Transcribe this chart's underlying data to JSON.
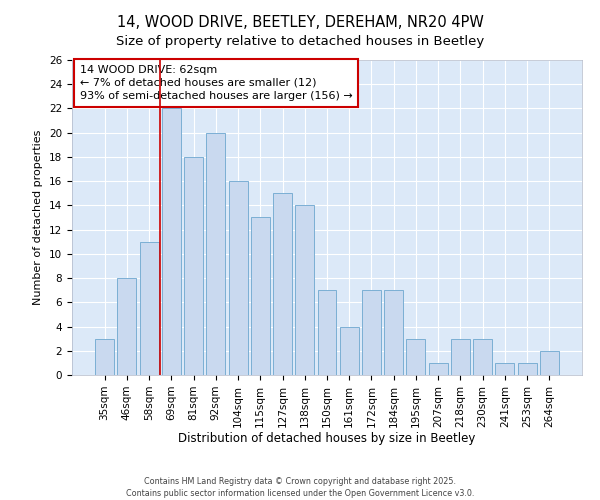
{
  "title": "14, WOOD DRIVE, BEETLEY, DEREHAM, NR20 4PW",
  "subtitle": "Size of property relative to detached houses in Beetley",
  "xlabel": "Distribution of detached houses by size in Beetley",
  "ylabel": "Number of detached properties",
  "categories": [
    "35sqm",
    "46sqm",
    "58sqm",
    "69sqm",
    "81sqm",
    "92sqm",
    "104sqm",
    "115sqm",
    "127sqm",
    "138sqm",
    "150sqm",
    "161sqm",
    "172sqm",
    "184sqm",
    "195sqm",
    "207sqm",
    "218sqm",
    "230sqm",
    "241sqm",
    "253sqm",
    "264sqm"
  ],
  "values": [
    3,
    8,
    11,
    22,
    18,
    20,
    16,
    13,
    15,
    14,
    7,
    4,
    7,
    7,
    3,
    1,
    3,
    3,
    1,
    1,
    2
  ],
  "bar_color": "#c9d9ef",
  "bar_edge_color": "#7bafd4",
  "reference_line_color": "#cc0000",
  "annotation_title": "14 WOOD DRIVE: 62sqm",
  "annotation_line1": "← 7% of detached houses are smaller (12)",
  "annotation_line2": "93% of semi-detached houses are larger (156) →",
  "annotation_box_color": "#ffffff",
  "annotation_box_edge_color": "#cc0000",
  "ylim": [
    0,
    26
  ],
  "yticks": [
    0,
    2,
    4,
    6,
    8,
    10,
    12,
    14,
    16,
    18,
    20,
    22,
    24,
    26
  ],
  "fig_background_color": "#ffffff",
  "plot_bg_color": "#dce9f8",
  "footer": "Contains HM Land Registry data © Crown copyright and database right 2025.\nContains public sector information licensed under the Open Government Licence v3.0.",
  "title_fontsize": 10.5,
  "subtitle_fontsize": 9.5,
  "xlabel_fontsize": 8.5,
  "ylabel_fontsize": 8,
  "tick_fontsize": 7.5,
  "footer_fontsize": 5.8,
  "annotation_fontsize": 8,
  "ref_line_x": 2.5
}
